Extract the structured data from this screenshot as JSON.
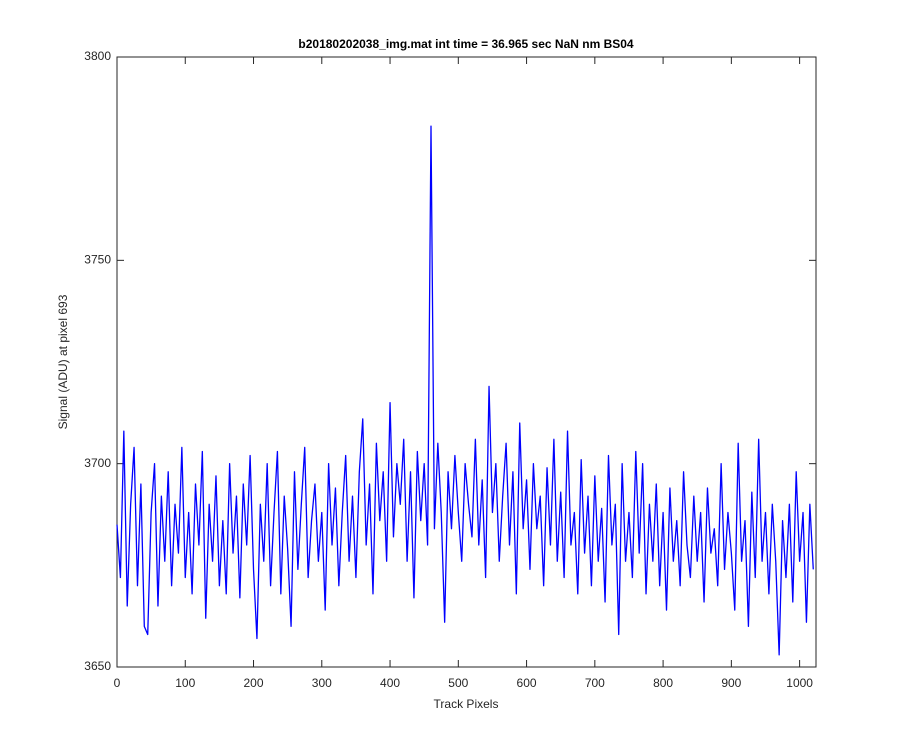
{
  "chart_data": {
    "type": "line",
    "title": "b20180202038_img.mat int time = 36.965 sec  NaN nm BS04",
    "xlabel": "Track Pixels",
    "ylabel": "Signal (ADU) at pixel 693",
    "color": "#0000ff",
    "xlim": [
      0,
      1024
    ],
    "ylim": [
      3650,
      3800
    ],
    "xticks": [
      0,
      100,
      200,
      300,
      400,
      500,
      600,
      700,
      800,
      900,
      1000
    ],
    "yticks": [
      3650,
      3700,
      3750,
      3800
    ],
    "grid": false,
    "x": [
      0,
      5,
      10,
      15,
      20,
      25,
      30,
      35,
      40,
      45,
      50,
      55,
      60,
      65,
      70,
      75,
      80,
      85,
      90,
      95,
      100,
      105,
      110,
      115,
      120,
      125,
      130,
      135,
      140,
      145,
      150,
      155,
      160,
      165,
      170,
      175,
      180,
      185,
      190,
      195,
      200,
      205,
      210,
      215,
      220,
      225,
      230,
      235,
      240,
      245,
      250,
      255,
      260,
      265,
      270,
      275,
      280,
      285,
      290,
      295,
      300,
      305,
      310,
      315,
      320,
      325,
      330,
      335,
      340,
      345,
      350,
      355,
      360,
      365,
      370,
      375,
      380,
      385,
      390,
      395,
      400,
      405,
      410,
      415,
      420,
      425,
      430,
      435,
      440,
      445,
      450,
      455,
      460,
      465,
      470,
      475,
      480,
      485,
      490,
      495,
      500,
      505,
      510,
      515,
      520,
      525,
      530,
      535,
      540,
      545,
      550,
      555,
      560,
      565,
      570,
      575,
      580,
      585,
      590,
      595,
      600,
      605,
      610,
      615,
      620,
      625,
      630,
      635,
      640,
      645,
      650,
      655,
      660,
      665,
      670,
      675,
      680,
      685,
      690,
      695,
      700,
      705,
      710,
      715,
      720,
      725,
      730,
      735,
      740,
      745,
      750,
      755,
      760,
      765,
      770,
      775,
      780,
      785,
      790,
      795,
      800,
      805,
      810,
      815,
      820,
      825,
      830,
      835,
      840,
      845,
      850,
      855,
      860,
      865,
      870,
      875,
      880,
      885,
      890,
      895,
      900,
      905,
      910,
      915,
      920,
      925,
      930,
      935,
      940,
      945,
      950,
      955,
      960,
      965,
      970,
      975,
      980,
      985,
      990,
      995,
      1000,
      1005,
      1010,
      1015,
      1020
    ],
    "values": [
      3685,
      3672,
      3708,
      3665,
      3690,
      3704,
      3670,
      3695,
      3660,
      3658,
      3688,
      3700,
      3665,
      3692,
      3676,
      3698,
      3670,
      3690,
      3678,
      3704,
      3672,
      3688,
      3668,
      3695,
      3680,
      3703,
      3662,
      3690,
      3676,
      3697,
      3670,
      3686,
      3668,
      3700,
      3678,
      3692,
      3667,
      3695,
      3680,
      3702,
      3674,
      3657,
      3690,
      3676,
      3700,
      3670,
      3688,
      3703,
      3668,
      3692,
      3679,
      3660,
      3698,
      3674,
      3690,
      3704,
      3672,
      3686,
      3695,
      3676,
      3688,
      3664,
      3700,
      3680,
      3694,
      3670,
      3688,
      3702,
      3676,
      3692,
      3672,
      3698,
      3711,
      3680,
      3695,
      3668,
      3705,
      3686,
      3698,
      3676,
      3715,
      3682,
      3700,
      3690,
      3706,
      3676,
      3698,
      3667,
      3703,
      3686,
      3700,
      3680,
      3783,
      3684,
      3705,
      3688,
      3661,
      3698,
      3684,
      3702,
      3688,
      3676,
      3700,
      3690,
      3682,
      3706,
      3680,
      3696,
      3672,
      3719,
      3688,
      3700,
      3676,
      3692,
      3705,
      3680,
      3698,
      3668,
      3710,
      3684,
      3696,
      3674,
      3700,
      3684,
      3692,
      3670,
      3699,
      3680,
      3706,
      3676,
      3693,
      3672,
      3708,
      3680,
      3688,
      3668,
      3701,
      3678,
      3692,
      3670,
      3697,
      3676,
      3689,
      3666,
      3702,
      3680,
      3690,
      3658,
      3700,
      3676,
      3688,
      3672,
      3703,
      3678,
      3700,
      3668,
      3690,
      3676,
      3695,
      3670,
      3688,
      3664,
      3694,
      3676,
      3686,
      3670,
      3698,
      3680,
      3672,
      3692,
      3676,
      3688,
      3666,
      3694,
      3678,
      3684,
      3670,
      3700,
      3674,
      3688,
      3678,
      3664,
      3705,
      3676,
      3686,
      3660,
      3693,
      3672,
      3706,
      3676,
      3688,
      3668,
      3690,
      3676,
      3653,
      3686,
      3672,
      3690,
      3666,
      3698,
      3676,
      3688,
      3661,
      3690,
      3674
    ]
  }
}
